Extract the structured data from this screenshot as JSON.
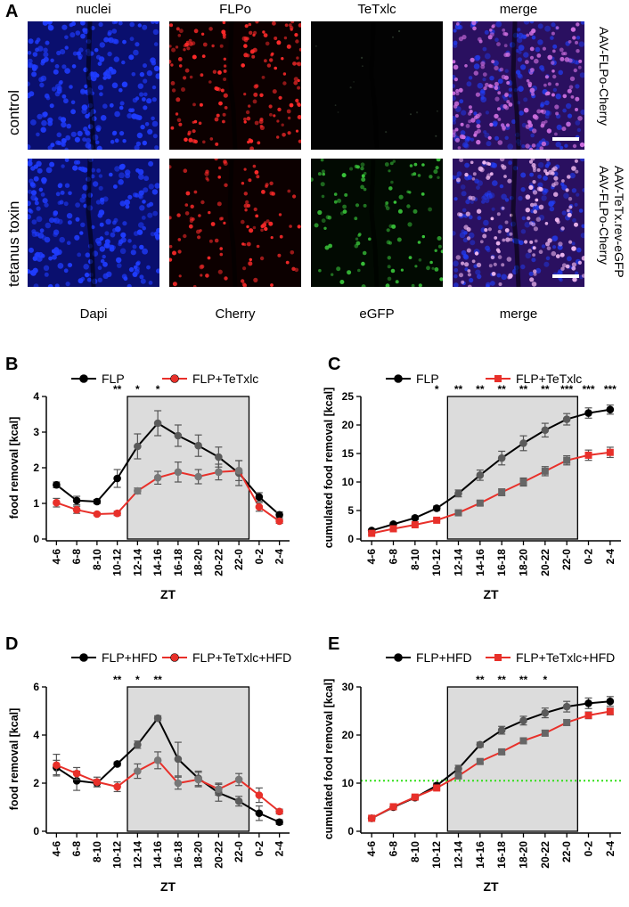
{
  "panel_a": {
    "letter": "A",
    "top_titles": [
      "nuclei",
      "FLPo",
      "TeTxlc",
      "merge"
    ],
    "bottom_titles": [
      "Dapi",
      "Cherry",
      "eGFP",
      "merge"
    ],
    "row_labels": [
      "control",
      "tetanus toxin"
    ],
    "side_labels": {
      "control": [
        "AAV-FLPo-Cherry"
      ],
      "tetanus": [
        "AAV-FLPo-Cherry",
        "AAV-TeTx.rev-eGFP"
      ]
    },
    "colors": {
      "nuclei": "#1f3cff",
      "flpo": "#ff2a2a",
      "egfp": "#39c43a",
      "merge": "#d070e0"
    }
  },
  "chart_data": [
    {
      "id": "B",
      "type": "line",
      "categories": [
        "4-6",
        "6-8",
        "8-10",
        "10-12",
        "12-14",
        "14-16",
        "16-18",
        "18-20",
        "20-22",
        "22-0",
        "0-2",
        "2-4"
      ],
      "xlabel": "ZT",
      "ylabel": "food removal [kcal]",
      "ylim": [
        0,
        4
      ],
      "yticks": [
        "0",
        "1",
        "2",
        "3",
        "4"
      ],
      "shaded": [
        "12-14",
        "22-0"
      ],
      "series": [
        {
          "name": "FLP",
          "marker": "circle",
          "color": "#000000",
          "values": [
            1.52,
            1.08,
            1.05,
            1.7,
            2.6,
            3.25,
            2.9,
            2.62,
            2.3,
            1.85,
            1.18,
            0.68
          ],
          "err": [
            0.08,
            0.12,
            0.06,
            0.25,
            0.35,
            0.35,
            0.3,
            0.3,
            0.28,
            0.35,
            0.12,
            0.08
          ]
        },
        {
          "name": "FLP+TeTxlc",
          "marker": "circle",
          "color": "#e8302a",
          "values": [
            1.02,
            0.82,
            0.7,
            0.72,
            1.35,
            1.72,
            1.88,
            1.75,
            1.88,
            1.92,
            0.9,
            0.5
          ],
          "err": [
            0.12,
            0.1,
            0.04,
            0.06,
            0.08,
            0.18,
            0.28,
            0.2,
            0.22,
            0.28,
            0.12,
            0.06
          ]
        }
      ],
      "significance": [
        {
          "category": "10-12",
          "label": "**"
        },
        {
          "category": "12-14",
          "label": "*"
        },
        {
          "category": "14-16",
          "label": "*"
        }
      ]
    },
    {
      "id": "C",
      "type": "line",
      "categories": [
        "4-6",
        "6-8",
        "8-10",
        "10-12",
        "12-14",
        "14-16",
        "16-18",
        "18-20",
        "20-22",
        "22-0",
        "0-2",
        "2-4"
      ],
      "xlabel": "ZT",
      "ylabel": "cumulated food removal [kcal]",
      "ylim": [
        0,
        25
      ],
      "yticks": [
        "0",
        "5",
        "10",
        "15",
        "20",
        "25"
      ],
      "shaded": [
        "12-14",
        "22-0"
      ],
      "series": [
        {
          "name": "FLP",
          "marker": "circle",
          "color": "#000000",
          "values": [
            1.5,
            2.6,
            3.7,
            5.4,
            8.0,
            11.2,
            14.2,
            16.8,
            19.1,
            21.0,
            22.1,
            22.7
          ],
          "err": [
            0.2,
            0.3,
            0.3,
            0.4,
            0.6,
            0.9,
            1.2,
            1.3,
            1.2,
            1.0,
            0.9,
            0.8
          ]
        },
        {
          "name": "FLP+TeTxlc",
          "marker": "square",
          "color": "#e8302a",
          "values": [
            1.0,
            1.8,
            2.5,
            3.3,
            4.6,
            6.3,
            8.2,
            10.0,
            11.9,
            13.8,
            14.7,
            15.2
          ],
          "err": [
            0.2,
            0.2,
            0.2,
            0.2,
            0.3,
            0.4,
            0.6,
            0.7,
            0.8,
            0.8,
            0.9,
            0.9
          ]
        }
      ],
      "significance": [
        {
          "category": "10-12",
          "label": "*"
        },
        {
          "category": "12-14",
          "label": "**"
        },
        {
          "category": "14-16",
          "label": "**"
        },
        {
          "category": "16-18",
          "label": "**"
        },
        {
          "category": "18-20",
          "label": "**"
        },
        {
          "category": "20-22",
          "label": "**"
        },
        {
          "category": "22-0",
          "label": "***"
        },
        {
          "category": "0-2",
          "label": "***"
        },
        {
          "category": "2-4",
          "label": "***"
        }
      ]
    },
    {
      "id": "D",
      "type": "line",
      "categories": [
        "4-6",
        "6-8",
        "8-10",
        "10-12",
        "12-14",
        "14-16",
        "16-18",
        "18-20",
        "20-22",
        "22-0",
        "0-2",
        "2-4"
      ],
      "xlabel": "ZT",
      "ylabel": "food removal [kcal]",
      "ylim": [
        0,
        6
      ],
      "yticks": [
        "0",
        "2",
        "4",
        "6"
      ],
      "shaded": [
        "12-14",
        "22-0"
      ],
      "series": [
        {
          "name": "FLP+HFD",
          "marker": "circle",
          "color": "#000000",
          "values": [
            2.65,
            2.1,
            2.0,
            2.8,
            3.6,
            4.7,
            3.0,
            2.2,
            1.6,
            1.25,
            0.75,
            0.38
          ],
          "err": [
            0.3,
            0.4,
            0.15,
            0.08,
            0.15,
            0.1,
            0.7,
            0.3,
            0.35,
            0.2,
            0.3,
            0.1
          ]
        },
        {
          "name": "FLP+TeTxlc+HFD",
          "marker": "circle",
          "color": "#e8302a",
          "values": [
            2.75,
            2.4,
            2.05,
            1.85,
            2.5,
            2.95,
            2.0,
            2.15,
            1.75,
            2.15,
            1.5,
            0.82
          ],
          "err": [
            0.45,
            0.25,
            0.2,
            0.2,
            0.3,
            0.35,
            0.25,
            0.3,
            0.25,
            0.25,
            0.3,
            0.1
          ]
        }
      ],
      "significance": [
        {
          "category": "10-12",
          "label": "**"
        },
        {
          "category": "12-14",
          "label": "*"
        },
        {
          "category": "14-16",
          "label": "**"
        }
      ]
    },
    {
      "id": "E",
      "type": "line",
      "categories": [
        "4-6",
        "6-8",
        "8-10",
        "10-12",
        "12-14",
        "14-16",
        "16-18",
        "18-20",
        "20-22",
        "22-0",
        "0-2",
        "2-4"
      ],
      "xlabel": "ZT",
      "ylabel": "cumulated food removal [kcal]",
      "ylim": [
        0,
        30
      ],
      "yticks": [
        "0",
        "10",
        "20",
        "30"
      ],
      "shaded": [
        "12-14",
        "22-0"
      ],
      "reference_line": {
        "y": 10.5,
        "color": "#33e01a"
      },
      "series": [
        {
          "name": "FLP+HFD",
          "marker": "circle",
          "color": "#000000",
          "values": [
            2.7,
            5.0,
            7.0,
            9.5,
            13.0,
            18.0,
            21.0,
            23.0,
            24.6,
            25.9,
            26.6,
            27.0
          ],
          "err": [
            0.2,
            0.3,
            0.4,
            0.5,
            0.7,
            0.5,
            0.8,
            0.9,
            1.0,
            1.1,
            1.1,
            1.0
          ]
        },
        {
          "name": "FLP+TeTxlc+HFD",
          "marker": "square",
          "color": "#e8302a",
          "values": [
            2.7,
            5.1,
            7.1,
            9.0,
            11.5,
            14.5,
            16.5,
            18.8,
            20.4,
            22.6,
            24.1,
            24.9
          ],
          "err": [
            0.2,
            0.3,
            0.4,
            0.4,
            0.5,
            0.4,
            0.5,
            0.5,
            0.6,
            0.6,
            0.7,
            0.7
          ]
        }
      ],
      "significance": [
        {
          "category": "14-16",
          "label": "**"
        },
        {
          "category": "16-18",
          "label": "**"
        },
        {
          "category": "18-20",
          "label": "**"
        },
        {
          "category": "20-22",
          "label": "*"
        }
      ]
    }
  ]
}
